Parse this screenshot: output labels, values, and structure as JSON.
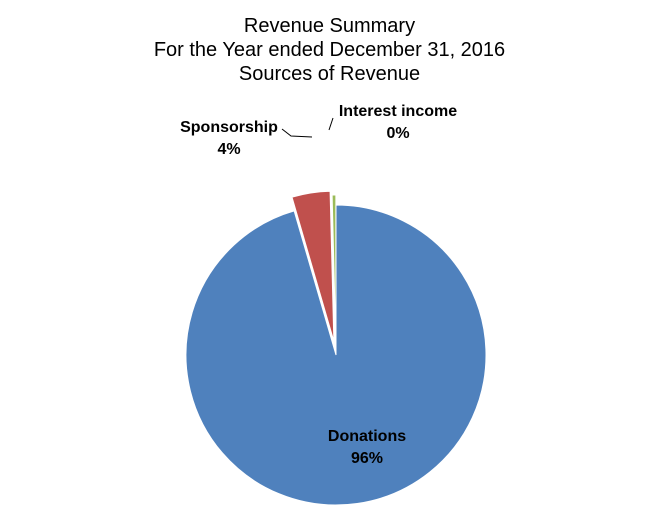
{
  "chart_data": {
    "type": "pie",
    "title_lines": [
      "Revenue Summary",
      "For the Year ended December 31, 2016",
      "Sources of Revenue"
    ],
    "slices": [
      {
        "label": "Donations",
        "percent_label": "96%",
        "value": 95.5,
        "color": "#4F81BD",
        "exploded": true
      },
      {
        "label": "Sponsorship",
        "percent_label": "4%",
        "value": 4.1,
        "color": "#C0504D",
        "exploded": true
      },
      {
        "label": "Interest income",
        "percent_label": "0%",
        "value": 0.4,
        "color": "#9BBB59",
        "exploded": true
      }
    ]
  }
}
